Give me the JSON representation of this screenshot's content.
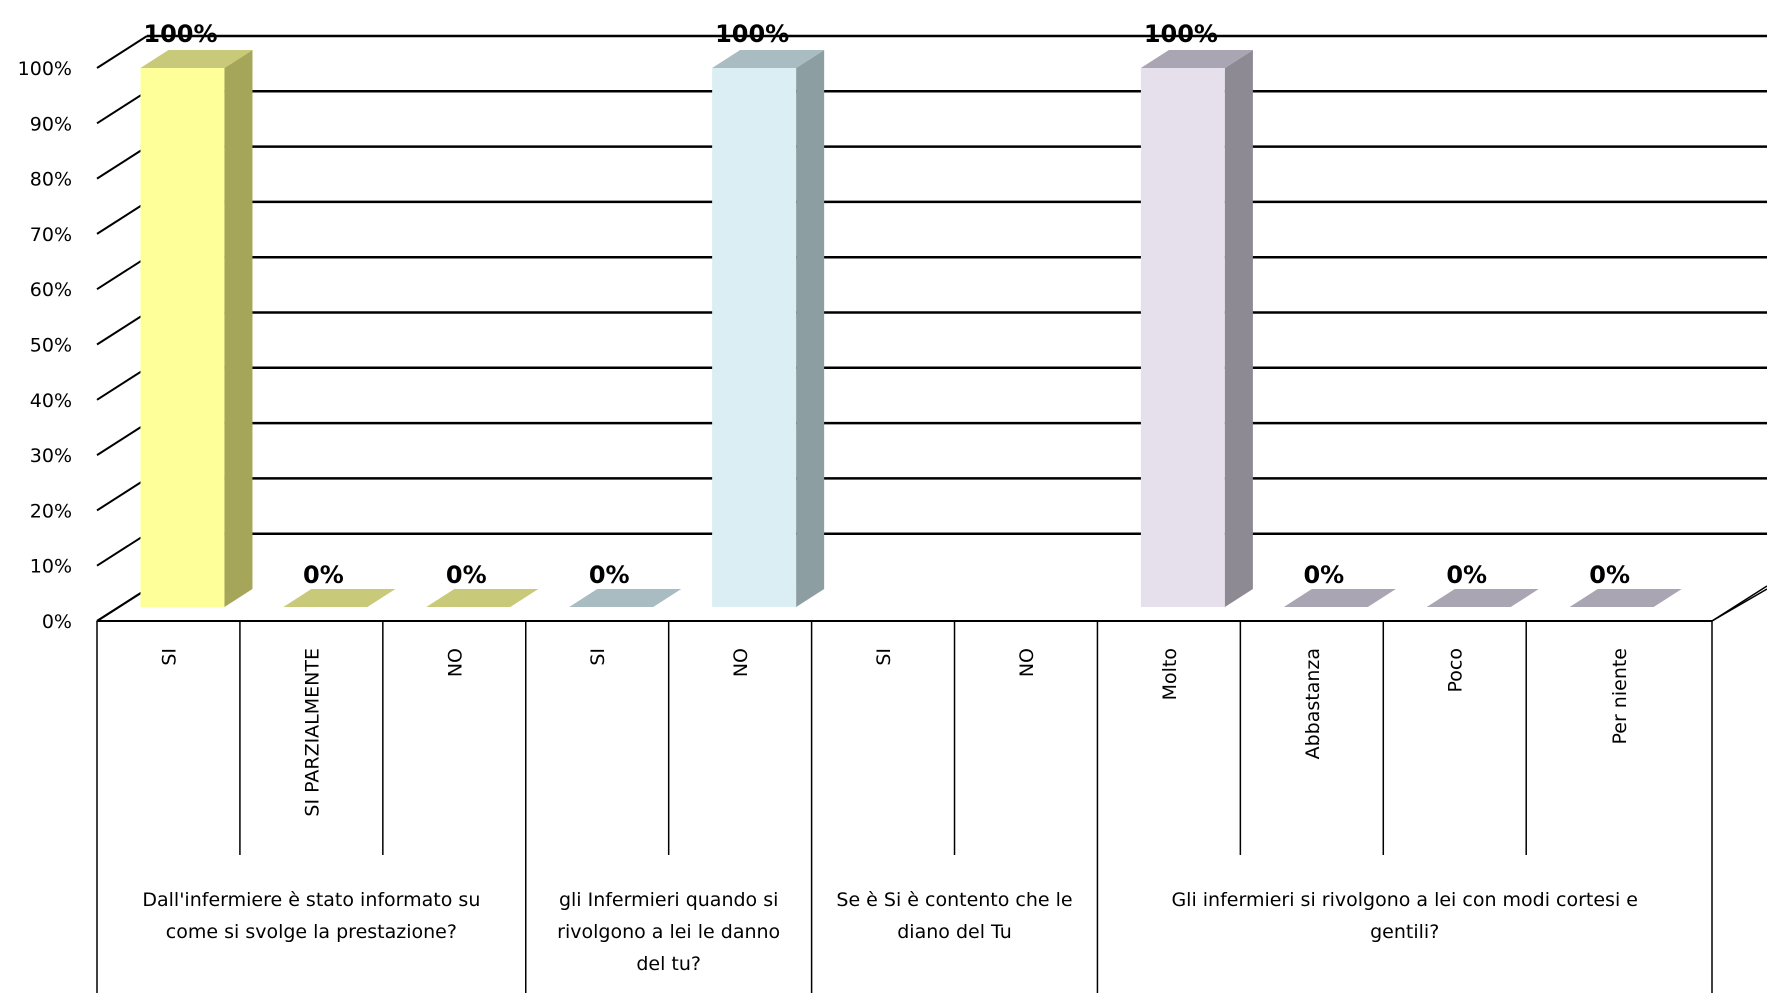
{
  "chart_data": {
    "type": "bar",
    "ylim": [
      0,
      100
    ],
    "y_ticks": [
      "0%",
      "10%",
      "20%",
      "30%",
      "40%",
      "50%",
      "60%",
      "70%",
      "80%",
      "90%",
      "100%"
    ],
    "grid": true,
    "legend": "none",
    "groups": [
      {
        "label": "Dall'infermiere è stato informato su come si svolge la prestazione?",
        "color": "#ffff99",
        "side_color": "#a6a65a",
        "top_color": "#c9c97a",
        "categories": [
          {
            "label": "SI",
            "value": 100,
            "data_label": "100%"
          },
          {
            "label": "SI PARZIALMENTE",
            "value": 0,
            "data_label": "0%"
          },
          {
            "label": "NO",
            "value": 0,
            "data_label": "0%"
          }
        ]
      },
      {
        "label": "gli Infermieri quando si rivolgono a lei le danno del tu?",
        "color": "#daeef3",
        "side_color": "#8c9ea2",
        "top_color": "#a9bcc2",
        "categories": [
          {
            "label": "SI",
            "value": 0,
            "data_label": "0%"
          },
          {
            "label": "NO",
            "value": 100,
            "data_label": "100%"
          }
        ]
      },
      {
        "label": "Se è Si è contento che le diano del Tu",
        "color": "#daeef3",
        "side_color": "#8c9ea2",
        "top_color": "#a9bcc2",
        "categories": [
          {
            "label": "SI",
            "value": null,
            "data_label": ""
          },
          {
            "label": "NO",
            "value": null,
            "data_label": ""
          }
        ]
      },
      {
        "label": "Gli infermieri si rivolgono a lei con modi cortesi e gentili?",
        "color": "#e6e0ec",
        "side_color": "#8e8a94",
        "top_color": "#aaa5b2",
        "categories": [
          {
            "label": "Molto",
            "value": 100,
            "data_label": "100%"
          },
          {
            "label": "Abbastanza",
            "value": 0,
            "data_label": "0%"
          },
          {
            "label": "Poco",
            "value": 0,
            "data_label": "0%"
          },
          {
            "label": "Per niente",
            "value": 0,
            "data_label": "0%"
          }
        ]
      }
    ]
  }
}
